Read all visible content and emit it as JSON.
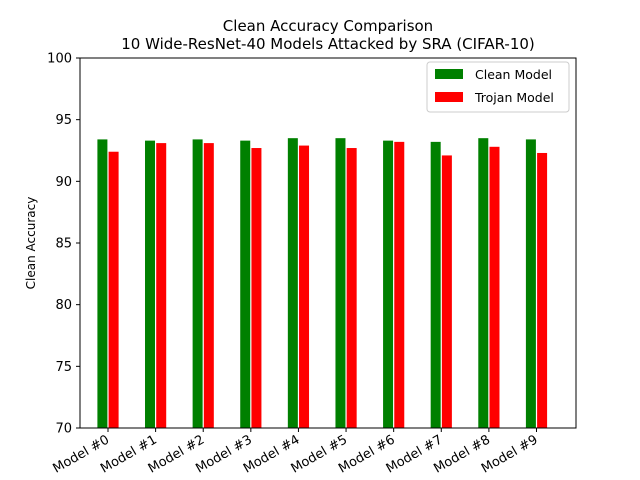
{
  "chart_data": {
    "type": "bar",
    "title": "Clean Accuracy Comparison",
    "subtitle": "10 Wide-ResNet-40 Models Attacked by SRA (CIFAR-10)",
    "ylabel": "Clean Accuracy",
    "xlabel": "",
    "ylim": [
      70,
      100
    ],
    "yticks": [
      70,
      75,
      80,
      85,
      90,
      95,
      100
    ],
    "grid": false,
    "legend_position": "top-right",
    "categories": [
      "Model #0",
      "Model #1",
      "Model #2",
      "Model #3",
      "Model #4",
      "Model #5",
      "Model #6",
      "Model #7",
      "Model #8",
      "Model #9"
    ],
    "series": [
      {
        "name": "Clean Model",
        "color": "#008000",
        "values": [
          93.4,
          93.3,
          93.4,
          93.3,
          93.5,
          93.5,
          93.3,
          93.2,
          93.5,
          93.4
        ]
      },
      {
        "name": "Trojan Model",
        "color": "#ff0000",
        "values": [
          92.4,
          93.1,
          93.1,
          92.7,
          92.9,
          92.7,
          93.2,
          92.1,
          92.8,
          92.3
        ]
      }
    ]
  }
}
